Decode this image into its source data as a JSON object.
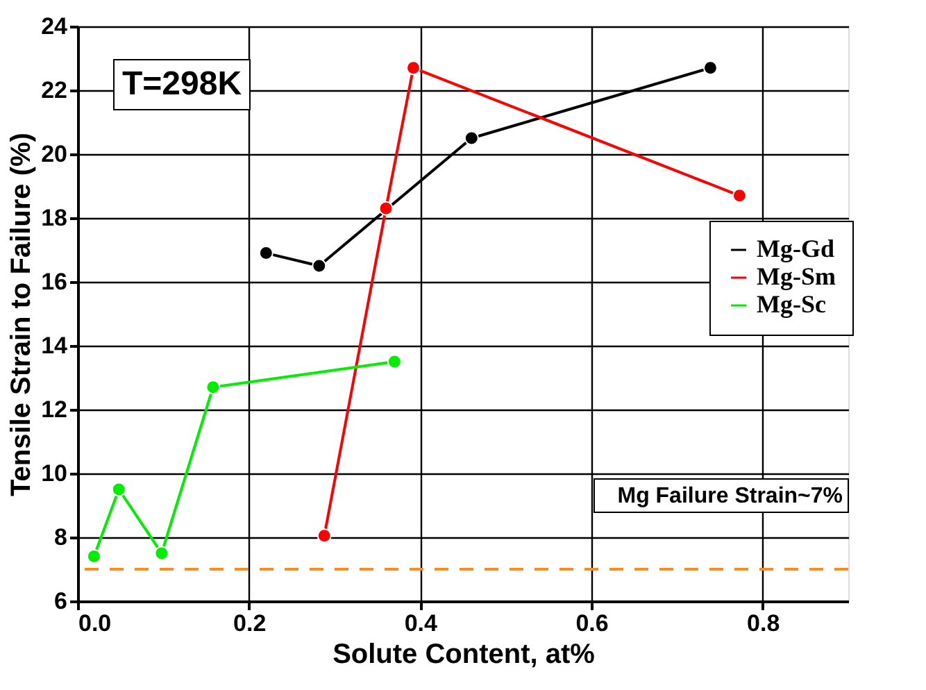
{
  "chart_data": {
    "type": "line",
    "xlabel": "Solute Content, at%",
    "ylabel": "Tensile Strain to Failure (%)",
    "xlim": [
      0,
      0.9
    ],
    "xticks": [
      {
        "value": 0,
        "label": "0.0"
      },
      0.2,
      0.4,
      0.6,
      0.8
    ],
    "ylim": [
      6,
      24
    ],
    "yticks": [
      6,
      8,
      10,
      12,
      14,
      16,
      18,
      20,
      22,
      24
    ],
    "grid": true,
    "legend": "right",
    "marker": "circle",
    "line_style": "solid",
    "series": [
      {
        "name": "Mg-Gd",
        "color": "#000000",
        "x": [
          0.22,
          0.282,
          0.46,
          0.739
        ],
        "values": [
          16.9,
          16.5,
          20.5,
          22.7
        ]
      },
      {
        "name": "Mg-Sm",
        "color": "#ff0000",
        "x": [
          0.288,
          0.36,
          0.392,
          0.773
        ],
        "values": [
          8.05,
          18.3,
          22.7,
          18.7
        ]
      },
      {
        "name": "Mg-Sc",
        "color": "#00ee00",
        "x": [
          0.019,
          0.048,
          0.098,
          0.158,
          0.37
        ],
        "values": [
          7.4,
          9.5,
          7.5,
          12.7,
          13.5
        ]
      }
    ],
    "ref_lines": [
      {
        "axis": "y",
        "value": 7,
        "label": "Mg Failure Strain~7%",
        "color": "#ff8c1a",
        "line_style": "dashed"
      }
    ],
    "annotations": [
      "T=298K"
    ]
  }
}
